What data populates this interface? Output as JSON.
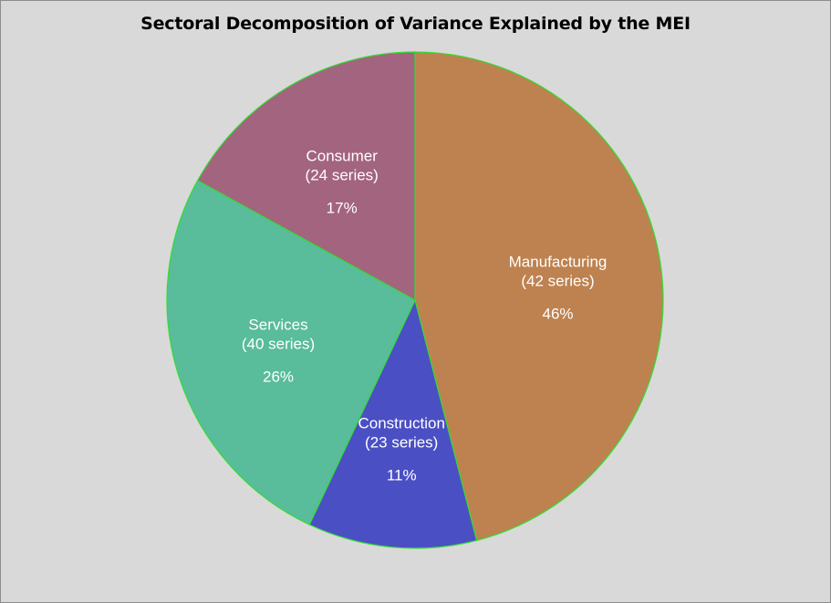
{
  "chart_data": {
    "type": "pie",
    "title": "Sectoral Decomposition of Variance Explained by the MEI",
    "slices": [
      {
        "label": "Manufacturing",
        "series_note": "(42 series)",
        "percent_label": "46%",
        "value": 46,
        "color": "#be8250"
      },
      {
        "label": "Construction",
        "series_note": "(23 series)",
        "percent_label": "11%",
        "value": 11,
        "color": "#4b4fc4"
      },
      {
        "label": "Services",
        "series_note": "(40 series)",
        "percent_label": "26%",
        "value": 26,
        "color": "#59bc9a"
      },
      {
        "label": "Consumer",
        "series_note": "(24 series)",
        "percent_label": "17%",
        "value": 17,
        "color": "#a3647f"
      }
    ],
    "start_angle_deg": 0,
    "direction": "clockwise",
    "slice_border_color": "#33dd33",
    "background_color": "#d9d9d9"
  }
}
